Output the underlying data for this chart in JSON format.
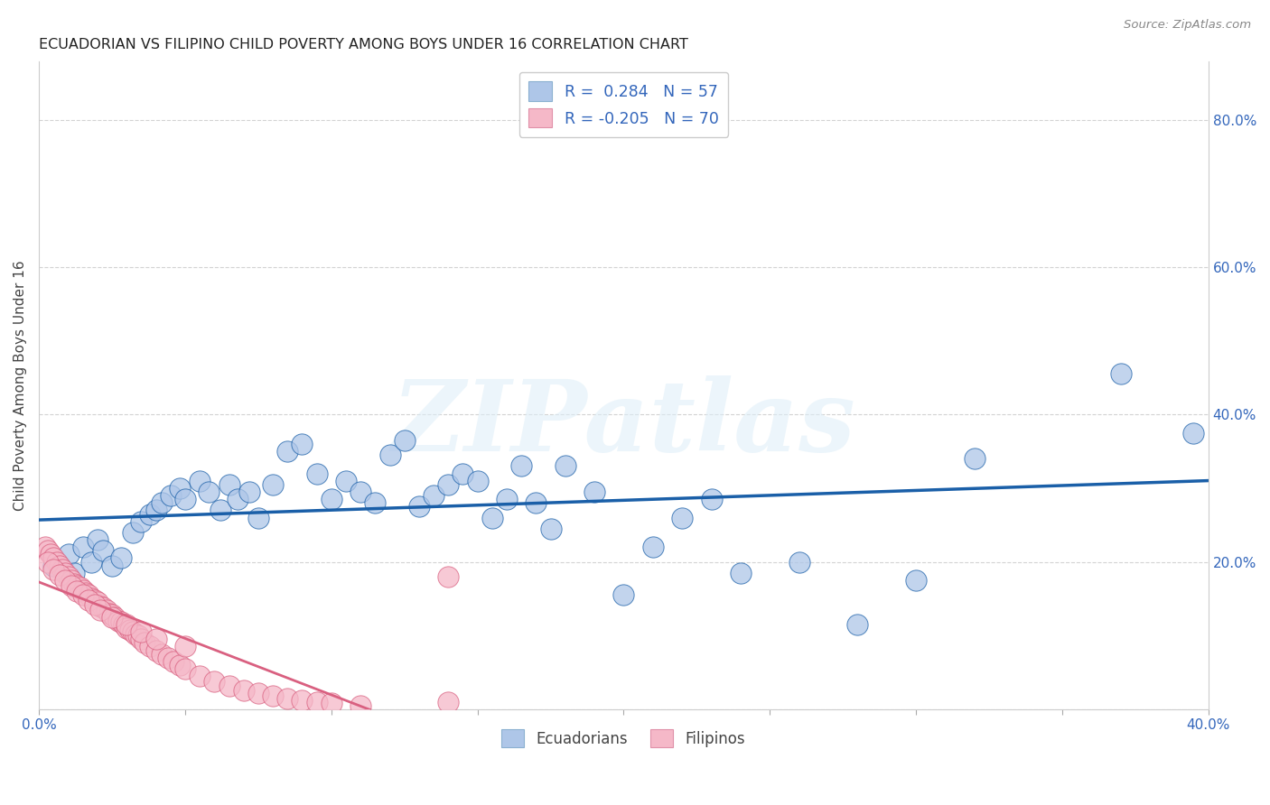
{
  "title": "ECUADORIAN VS FILIPINO CHILD POVERTY AMONG BOYS UNDER 16 CORRELATION CHART",
  "source": "Source: ZipAtlas.com",
  "ylabel_label": "Child Poverty Among Boys Under 16",
  "xlim": [
    0.0,
    0.4
  ],
  "ylim": [
    0.0,
    0.88
  ],
  "xticks": [
    0.0,
    0.05,
    0.1,
    0.15,
    0.2,
    0.25,
    0.3,
    0.35,
    0.4
  ],
  "yticks": [
    0.0,
    0.2,
    0.4,
    0.6,
    0.8
  ],
  "legend_blue_label": "Ecuadorians",
  "legend_pink_label": "Filipinos",
  "r_blue": 0.284,
  "n_blue": 57,
  "r_pink": -0.205,
  "n_pink": 70,
  "blue_color": "#aec6e8",
  "pink_color": "#f5b8c8",
  "blue_line_color": "#1a5fa8",
  "pink_line_color": "#d96080",
  "watermark_text": "ZIPatlas",
  "ecu_x": [
    0.005,
    0.01,
    0.012,
    0.015,
    0.018,
    0.02,
    0.022,
    0.025,
    0.028,
    0.032,
    0.035,
    0.038,
    0.04,
    0.042,
    0.045,
    0.048,
    0.05,
    0.055,
    0.058,
    0.062,
    0.065,
    0.068,
    0.072,
    0.075,
    0.08,
    0.085,
    0.09,
    0.095,
    0.1,
    0.105,
    0.11,
    0.115,
    0.12,
    0.125,
    0.13,
    0.135,
    0.14,
    0.145,
    0.15,
    0.155,
    0.16,
    0.165,
    0.17,
    0.175,
    0.18,
    0.19,
    0.2,
    0.21,
    0.22,
    0.23,
    0.24,
    0.26,
    0.28,
    0.3,
    0.32,
    0.37,
    0.395
  ],
  "ecu_y": [
    0.195,
    0.21,
    0.185,
    0.22,
    0.2,
    0.23,
    0.215,
    0.195,
    0.205,
    0.24,
    0.255,
    0.265,
    0.27,
    0.28,
    0.29,
    0.3,
    0.285,
    0.31,
    0.295,
    0.27,
    0.305,
    0.285,
    0.295,
    0.26,
    0.305,
    0.35,
    0.36,
    0.32,
    0.285,
    0.31,
    0.295,
    0.28,
    0.345,
    0.365,
    0.275,
    0.29,
    0.305,
    0.32,
    0.31,
    0.26,
    0.285,
    0.33,
    0.28,
    0.245,
    0.33,
    0.295,
    0.155,
    0.22,
    0.26,
    0.285,
    0.185,
    0.2,
    0.115,
    0.175,
    0.34,
    0.455,
    0.375
  ],
  "fil_x": [
    0.002,
    0.003,
    0.004,
    0.005,
    0.006,
    0.007,
    0.008,
    0.009,
    0.01,
    0.011,
    0.012,
    0.013,
    0.014,
    0.015,
    0.016,
    0.017,
    0.018,
    0.019,
    0.02,
    0.021,
    0.022,
    0.023,
    0.024,
    0.025,
    0.026,
    0.027,
    0.028,
    0.029,
    0.03,
    0.031,
    0.032,
    0.033,
    0.034,
    0.035,
    0.036,
    0.038,
    0.04,
    0.042,
    0.044,
    0.046,
    0.048,
    0.05,
    0.055,
    0.06,
    0.065,
    0.07,
    0.075,
    0.08,
    0.085,
    0.09,
    0.095,
    0.1,
    0.11,
    0.14,
    0.003,
    0.005,
    0.007,
    0.009,
    0.011,
    0.013,
    0.015,
    0.017,
    0.019,
    0.021,
    0.025,
    0.03,
    0.035,
    0.04,
    0.05,
    0.14
  ],
  "fil_y": [
    0.22,
    0.215,
    0.21,
    0.205,
    0.2,
    0.195,
    0.19,
    0.185,
    0.18,
    0.175,
    0.17,
    0.168,
    0.165,
    0.162,
    0.158,
    0.155,
    0.15,
    0.148,
    0.145,
    0.14,
    0.138,
    0.135,
    0.13,
    0.128,
    0.125,
    0.12,
    0.118,
    0.115,
    0.11,
    0.108,
    0.105,
    0.102,
    0.1,
    0.095,
    0.09,
    0.085,
    0.08,
    0.075,
    0.07,
    0.065,
    0.06,
    0.055,
    0.045,
    0.038,
    0.032,
    0.025,
    0.022,
    0.018,
    0.015,
    0.012,
    0.01,
    0.008,
    0.005,
    0.01,
    0.2,
    0.19,
    0.182,
    0.175,
    0.168,
    0.16,
    0.155,
    0.148,
    0.142,
    0.135,
    0.125,
    0.115,
    0.105,
    0.095,
    0.085,
    0.18
  ]
}
